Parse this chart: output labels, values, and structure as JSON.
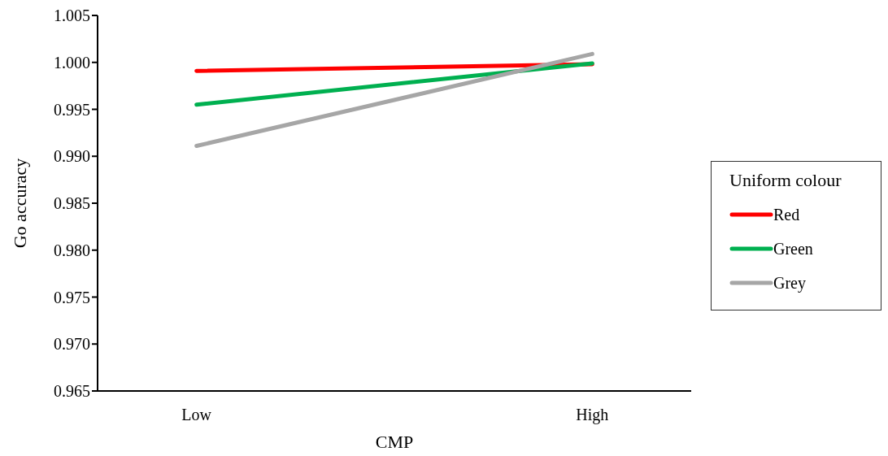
{
  "chart_data": {
    "type": "line",
    "xlabel": "CMP",
    "ylabel": "Go accuracy",
    "legend_title": "Uniform colour",
    "categories": [
      "Low",
      null,
      "High"
    ],
    "series": [
      {
        "name": "Red",
        "color": "#ff0000",
        "values": [
          0.9991,
          null,
          0.9998
        ]
      },
      {
        "name": "Green",
        "color": "#00b050",
        "values": [
          0.9955,
          null,
          0.9999
        ]
      },
      {
        "name": "Grey",
        "color": "#a6a6a6",
        "values": [
          0.9911,
          null,
          1.0009
        ]
      }
    ],
    "ylim": [
      0.965,
      1.005
    ],
    "yticks": [
      {
        "value": 0.965,
        "label": "0.965"
      },
      {
        "value": 0.97,
        "label": "0.970"
      },
      {
        "value": 0.975,
        "label": "0.975"
      },
      {
        "value": 0.98,
        "label": "0.980"
      },
      {
        "value": 0.985,
        "label": "0.985"
      },
      {
        "value": 0.99,
        "label": "0.990"
      },
      {
        "value": 0.995,
        "label": "0.995"
      },
      {
        "value": 1,
        "label": "1.000"
      },
      {
        "value": 1.005,
        "label": "1.005"
      }
    ],
    "grid": false,
    "legend": "right",
    "marker": "none",
    "line_style": "solid"
  }
}
